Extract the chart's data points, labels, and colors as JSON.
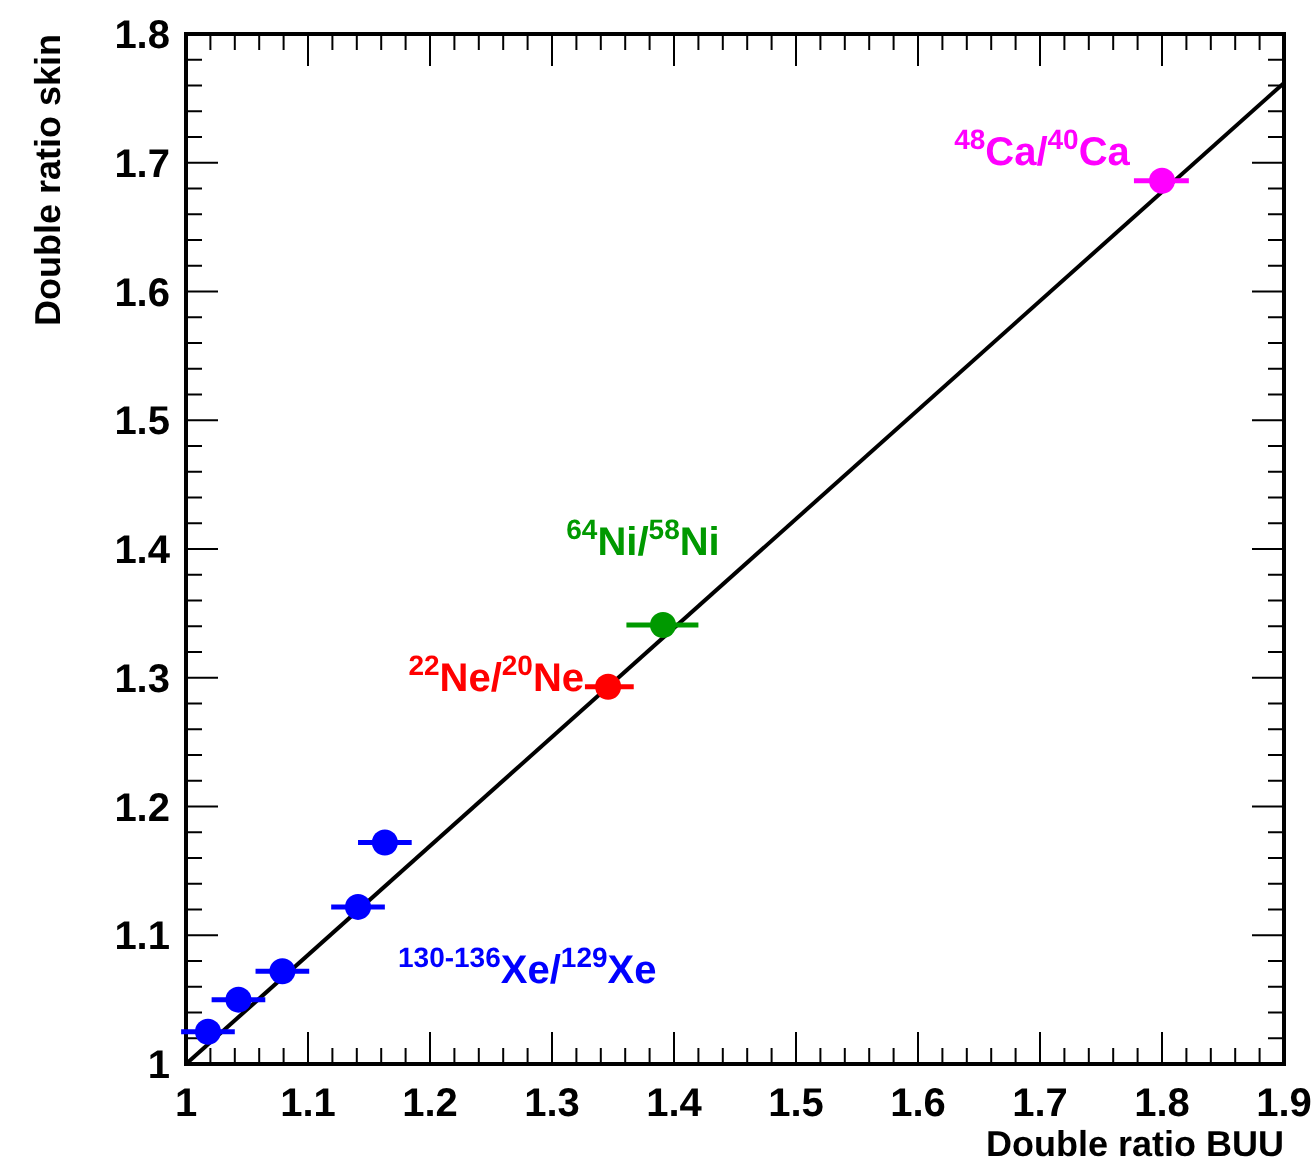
{
  "chart_data": {
    "type": "scatter",
    "xlabel": "Double ratio BUU",
    "ylabel": "Double ratio skin",
    "xlim": [
      1,
      1.9
    ],
    "ylim": [
      1,
      1.8
    ],
    "xticks": [
      1,
      {
        "value": 1.02,
        "label": null
      },
      {
        "value": 1.04,
        "label": null
      },
      {
        "value": 1.06,
        "label": null
      },
      {
        "value": 1.08,
        "label": null
      },
      1.1,
      {
        "value": 1.12,
        "label": null
      },
      {
        "value": 1.14,
        "label": null
      },
      {
        "value": 1.16,
        "label": null
      },
      {
        "value": 1.18,
        "label": null
      },
      1.2,
      {
        "value": 1.22,
        "label": null
      },
      {
        "value": 1.24,
        "label": null
      },
      {
        "value": 1.26,
        "label": null
      },
      {
        "value": 1.28,
        "label": null
      },
      1.3,
      {
        "value": 1.32,
        "label": null
      },
      {
        "value": 1.34,
        "label": null
      },
      {
        "value": 1.36,
        "label": null
      },
      {
        "value": 1.38,
        "label": null
      },
      1.4,
      {
        "value": 1.42,
        "label": null
      },
      {
        "value": 1.44,
        "label": null
      },
      {
        "value": 1.46,
        "label": null
      },
      {
        "value": 1.48,
        "label": null
      },
      1.5,
      {
        "value": 1.52,
        "label": null
      },
      {
        "value": 1.54,
        "label": null
      },
      {
        "value": 1.56,
        "label": null
      },
      {
        "value": 1.58,
        "label": null
      },
      1.6,
      {
        "value": 1.62,
        "label": null
      },
      {
        "value": 1.64,
        "label": null
      },
      {
        "value": 1.66,
        "label": null
      },
      {
        "value": 1.68,
        "label": null
      },
      1.7,
      {
        "value": 1.72,
        "label": null
      },
      {
        "value": 1.74,
        "label": null
      },
      {
        "value": 1.76,
        "label": null
      },
      {
        "value": 1.78,
        "label": null
      },
      1.8,
      {
        "value": 1.82,
        "label": null
      },
      {
        "value": 1.84,
        "label": null
      },
      {
        "value": 1.86,
        "label": null
      },
      {
        "value": 1.88,
        "label": null
      },
      1.9
    ],
    "yticks": [
      1,
      {
        "value": 1.02,
        "label": null
      },
      {
        "value": 1.04,
        "label": null
      },
      {
        "value": 1.06,
        "label": null
      },
      {
        "value": 1.08,
        "label": null
      },
      1.1,
      {
        "value": 1.12,
        "label": null
      },
      {
        "value": 1.14,
        "label": null
      },
      {
        "value": 1.16,
        "label": null
      },
      {
        "value": 1.18,
        "label": null
      },
      1.2,
      {
        "value": 1.22,
        "label": null
      },
      {
        "value": 1.24,
        "label": null
      },
      {
        "value": 1.26,
        "label": null
      },
      {
        "value": 1.28,
        "label": null
      },
      1.3,
      {
        "value": 1.32,
        "label": null
      },
      {
        "value": 1.34,
        "label": null
      },
      {
        "value": 1.36,
        "label": null
      },
      {
        "value": 1.38,
        "label": null
      },
      1.4,
      {
        "value": 1.42,
        "label": null
      },
      {
        "value": 1.44,
        "label": null
      },
      {
        "value": 1.46,
        "label": null
      },
      {
        "value": 1.48,
        "label": null
      },
      1.5,
      {
        "value": 1.52,
        "label": null
      },
      {
        "value": 1.54,
        "label": null
      },
      {
        "value": 1.56,
        "label": null
      },
      {
        "value": 1.58,
        "label": null
      },
      1.6,
      {
        "value": 1.62,
        "label": null
      },
      {
        "value": 1.64,
        "label": null
      },
      {
        "value": 1.66,
        "label": null
      },
      {
        "value": 1.68,
        "label": null
      },
      1.7,
      {
        "value": 1.72,
        "label": null
      },
      {
        "value": 1.74,
        "label": null
      },
      {
        "value": 1.76,
        "label": null
      },
      {
        "value": 1.78,
        "label": null
      },
      1.8
    ],
    "grid": false,
    "marker": "circle",
    "series": [
      {
        "type": "line",
        "color": "#000000",
        "x": [
          1,
          1.9
        ],
        "values": [
          1.0,
          1.762
        ],
        "marker": "none",
        "line_style": "solid"
      },
      {
        "name": "$^{130-136}$Xe/$^{129}$Xe",
        "color": "#0000ff",
        "x": [
          1.018,
          1.043,
          1.079,
          1.141,
          1.163
        ],
        "values": [
          1.025,
          1.05,
          1.072,
          1.122,
          1.172
        ],
        "xerrors": [
          0.022,
          0.022,
          0.022,
          0.022,
          0.022
        ]
      },
      {
        "name": "$^{22}$Ne/$^{20}$Ne",
        "color": "#ff0000",
        "x": [
          1.346
        ],
        "values": [
          1.293
        ],
        "xerrors": [
          [
            1.327,
            1.367
          ]
        ]
      },
      {
        "name": "$^{64}$Ni/$^{58}$Ni",
        "color": "#009900",
        "x": [
          1.391
        ],
        "values": [
          1.341
        ],
        "xerrors": [
          [
            1.361,
            1.42
          ]
        ]
      },
      {
        "name": "$^{48}$Ca/$^{40}$Ca",
        "color": "#ff00ff",
        "x": [
          1.8
        ],
        "values": [
          1.686
        ],
        "xerrors": [
          [
            1.777,
            1.822
          ]
        ]
      }
    ]
  }
}
